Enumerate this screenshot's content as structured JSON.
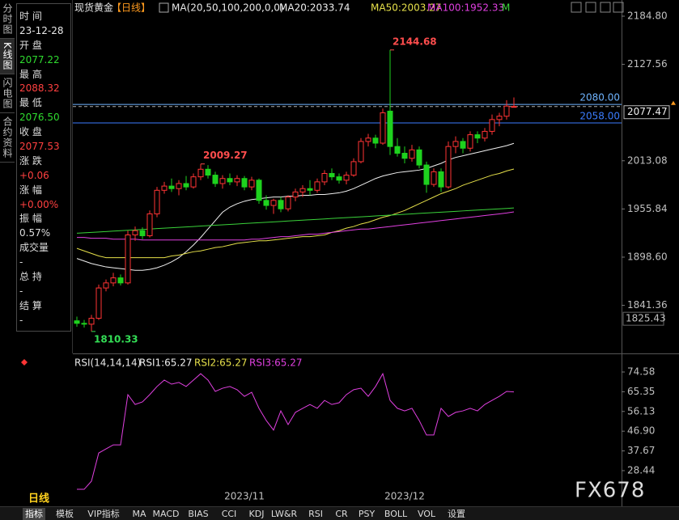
{
  "sidebar_tabs": [
    "分时图",
    "K线图",
    "闪电图",
    "合约资料"
  ],
  "info": [
    {
      "label": "时 间",
      "value": "23-12-28",
      "color": "#e8e8e8"
    },
    {
      "label": "开 盘",
      "value": "2077.22",
      "color": "#2fdc2f"
    },
    {
      "label": "最 高",
      "value": "2088.32",
      "color": "#ff4040"
    },
    {
      "label": "最 低",
      "value": "2076.50",
      "color": "#2fdc2f"
    },
    {
      "label": "收 盘",
      "value": "2077.53",
      "color": "#ff4040"
    },
    {
      "label": "涨 跌",
      "value": "+0.06",
      "color": "#ff4040"
    },
    {
      "label": "涨 幅",
      "value": "+0.00%",
      "color": "#ff4040"
    },
    {
      "label": "振 幅",
      "value": "0.57%",
      "color": "#dddddd"
    },
    {
      "label": "成交量",
      "value": "-",
      "color": "#dddddd"
    },
    {
      "label": "总 持",
      "value": "-",
      "color": "#dddddd"
    },
    {
      "label": "结 算",
      "value": "-",
      "color": "#dddddd"
    }
  ],
  "period_label": "日线",
  "watermark": "FX678",
  "tabs": [
    "指标",
    "模板",
    "VIP指标",
    "MA",
    "MACD",
    "BIAS",
    "CCI",
    "KDJ",
    "LW&R",
    "RSI",
    "CR",
    "PSY",
    "BOLL",
    "VOL",
    "设置"
  ],
  "chart_data": [
    {
      "type": "candlestick",
      "title": "现货黄金",
      "period": "【日线】",
      "indicator": "MA(20,50,100,200,0,0)",
      "ylim": [
        1786.2,
        2204.0
      ],
      "yticks": [
        {
          "value": 2184.8,
          "label": "2184.80"
        },
        2127.56,
        2013.08,
        1955.84,
        {
          "value": 1898.6,
          "label": "1898.60"
        },
        1841.36
      ],
      "up_color": "#ff3434",
      "down_color": "#1ed21e",
      "hlines": [
        {
          "value": 2080,
          "label": "2080.00",
          "color": "#6fb4ff"
        },
        {
          "value": 2058,
          "label": "2058.00",
          "color": "#3b7dff"
        }
      ],
      "last_price": 2077.47,
      "low_marker": 1825.43,
      "candles": [
        [
          1823,
          1828,
          1816,
          1820
        ],
        [
          1820,
          1824,
          1815,
          1819
        ],
        [
          1819,
          1830,
          1810.33,
          1826
        ],
        [
          1826,
          1866,
          1824,
          1862
        ],
        [
          1862,
          1872,
          1858,
          1868
        ],
        [
          1868,
          1880,
          1864,
          1874
        ],
        [
          1874,
          1878,
          1865,
          1868
        ],
        [
          1868,
          1930,
          1866,
          1925
        ],
        [
          1925,
          1935,
          1918,
          1930
        ],
        [
          1930,
          1934,
          1920,
          1924
        ],
        [
          1924,
          1954,
          1922,
          1950
        ],
        [
          1950,
          1982,
          1946,
          1978
        ],
        [
          1978,
          1988,
          1974,
          1983
        ],
        [
          1983,
          1992,
          1976,
          1980
        ],
        [
          1980,
          1990,
          1972,
          1986
        ],
        [
          1986,
          1995,
          1978,
          1982
        ],
        [
          1982,
          1998,
          1980,
          1994
        ],
        [
          1994,
          2009.27,
          1990,
          2003
        ],
        [
          2003,
          2008,
          1992,
          1996
        ],
        [
          1996,
          2000,
          1982,
          1986
        ],
        [
          1986,
          1996,
          1980,
          1992
        ],
        [
          1992,
          1998,
          1984,
          1988
        ],
        [
          1988,
          1996,
          1983,
          1992
        ],
        [
          1992,
          1995,
          1978,
          1982
        ],
        [
          1982,
          1994,
          1978,
          1990
        ],
        [
          1990,
          1992,
          1962,
          1966
        ],
        [
          1966,
          1972,
          1955,
          1960
        ],
        [
          1960,
          1968,
          1950,
          1966
        ],
        [
          1966,
          1970,
          1952,
          1956
        ],
        [
          1956,
          1972,
          1953,
          1970
        ],
        [
          1970,
          1980,
          1965,
          1976
        ],
        [
          1976,
          1984,
          1970,
          1980
        ],
        [
          1980,
          1990,
          1972,
          1978
        ],
        [
          1978,
          1992,
          1975,
          1988
        ],
        [
          1988,
          2002,
          1984,
          1998
        ],
        [
          1998,
          2004,
          1990,
          1994
        ],
        [
          1994,
          1998,
          1986,
          1990
        ],
        [
          1990,
          2000,
          1985,
          1996
        ],
        [
          1996,
          2016,
          1994,
          2012
        ],
        [
          2012,
          2040,
          2010,
          2036
        ],
        [
          2036,
          2045,
          2030,
          2040
        ],
        [
          2040,
          2044,
          2028,
          2034
        ],
        [
          2034,
          2075,
          2032,
          2070
        ],
        [
          2072,
          2144.68,
          2020,
          2030
        ],
        [
          2030,
          2040,
          2018,
          2022
        ],
        [
          2022,
          2030,
          2010,
          2016
        ],
        [
          2016,
          2032,
          2012,
          2026
        ],
        [
          2026,
          2030,
          2004,
          2008
        ],
        [
          2008,
          2012,
          1975,
          1985
        ],
        [
          1985,
          2004,
          1982,
          2000
        ],
        [
          2000,
          2004,
          1976,
          1982
        ],
        [
          1982,
          2036,
          1980,
          2030
        ],
        [
          2030,
          2042,
          2022,
          2036
        ],
        [
          2036,
          2040,
          2022,
          2028
        ],
        [
          2028,
          2048,
          2024,
          2044
        ],
        [
          2044,
          2048,
          2034,
          2040
        ],
        [
          2040,
          2052,
          2036,
          2048
        ],
        [
          2048,
          2068,
          2044,
          2062
        ],
        [
          2062,
          2070,
          2054,
          2066
        ],
        [
          2066,
          2085,
          2062,
          2078
        ],
        [
          2077.22,
          2088.32,
          2076.5,
          2077.53
        ]
      ],
      "series": [
        {
          "label": "MA20:2033.74",
          "color": "#f0f0f0",
          "values": [
            1897,
            1894,
            1891,
            1889,
            1887,
            1886,
            1885,
            1884,
            1883,
            1883,
            1884,
            1886,
            1889,
            1893,
            1898,
            1905,
            1913,
            1922,
            1932,
            1942,
            1952,
            1958,
            1962,
            1965,
            1967,
            1968,
            1969,
            1970,
            1970,
            1971,
            1971,
            1972,
            1972,
            1973,
            1973,
            1974,
            1975,
            1977,
            1980,
            1984,
            1988,
            1992,
            1995,
            1997,
            1999,
            2000,
            2001,
            2002,
            2004,
            2007,
            2010,
            2014,
            2017,
            2019,
            2021,
            2023,
            2025,
            2027,
            2029,
            2031,
            2033.74
          ]
        },
        {
          "label": "MA50:2003.27",
          "color": "#e6e04a",
          "values": [
            1909,
            1906,
            1903,
            1900,
            1898,
            1898,
            1898,
            1898,
            1898,
            1898,
            1898,
            1898,
            1898,
            1900,
            1901,
            1903,
            1905,
            1906,
            1908,
            1910,
            1911,
            1913,
            1915,
            1916,
            1917,
            1918,
            1918,
            1919,
            1920,
            1921,
            1922,
            1923,
            1923,
            1924,
            1925,
            1928,
            1930,
            1933,
            1935,
            1938,
            1940,
            1943,
            1946,
            1948,
            1951,
            1954,
            1958,
            1962,
            1966,
            1970,
            1974,
            1977,
            1980,
            1984,
            1987,
            1990,
            1993,
            1996,
            1998,
            2001,
            2003.27
          ]
        },
        {
          "label": "MA100:1952.33",
          "color": "#e040e0",
          "values": [
            1922,
            1922,
            1921,
            1921,
            1921,
            1920,
            1920,
            1920,
            1920,
            1919,
            1919,
            1919,
            1919,
            1919,
            1919,
            1919,
            1919,
            1919,
            1919,
            1919,
            1919,
            1919,
            1919,
            1919,
            1920,
            1920,
            1921,
            1922,
            1923,
            1923,
            1924,
            1925,
            1926,
            1926,
            1927,
            1928,
            1929,
            1930,
            1931,
            1932,
            1932,
            1933,
            1934,
            1935,
            1936,
            1937,
            1938,
            1939,
            1940,
            1941,
            1942,
            1943,
            1944,
            1945,
            1946,
            1947,
            1948,
            1949,
            1950,
            1951,
            1952.33
          ]
        },
        {
          "label": "M",
          "color": "#3ad23a",
          "values": [
            1927,
            1927.5,
            1928,
            1928.5,
            1929,
            1929.5,
            1930,
            1930.5,
            1931,
            1931.5,
            1932,
            1932.5,
            1933,
            1933.5,
            1934,
            1934.5,
            1935,
            1935.5,
            1936,
            1936.5,
            1937,
            1937.5,
            1938,
            1938.5,
            1939,
            1939.5,
            1940,
            1940.5,
            1941,
            1941.5,
            1942,
            1942.5,
            1943,
            1943.5,
            1944,
            1944.5,
            1945,
            1945.5,
            1946,
            1946.5,
            1947,
            1947.5,
            1948,
            1948.5,
            1949,
            1949.5,
            1950,
            1950.5,
            1951,
            1951.5,
            1952,
            1952.5,
            1953,
            1953.5,
            1954,
            1954.5,
            1955,
            1955.5,
            1956,
            1956.5,
            1957
          ]
        }
      ]
    },
    {
      "type": "line",
      "indicator": "RSI(14,14,14)",
      "labels": [
        {
          "text": "RSI1:65.27",
          "color": "#f0f0f0"
        },
        {
          "text": "RSI2:65.27",
          "color": "#e6e04a"
        },
        {
          "text": "RSI3:65.27",
          "color": "#e040e0"
        }
      ],
      "ylim": [
        15.94,
        82.15
      ],
      "yticks": [
        74.58,
        65.35,
        56.13,
        {
          "value": 46.9,
          "label": "46.90"
        },
        37.67,
        28.44
      ],
      "grid": false,
      "categories": [
        null,
        null,
        null,
        null,
        null,
        null,
        null,
        null,
        null,
        null,
        null,
        null,
        null,
        null,
        null,
        null,
        null,
        null,
        null,
        null,
        null,
        null,
        null,
        "2023/11",
        null,
        null,
        null,
        null,
        null,
        null,
        null,
        null,
        null,
        null,
        null,
        null,
        null,
        null,
        null,
        null,
        null,
        null,
        null,
        null,
        null,
        "2023/12",
        null,
        null,
        null,
        null,
        null,
        null,
        null,
        null,
        null,
        null,
        null,
        null,
        null,
        null,
        null
      ],
      "series": [
        {
          "color": "#e040e0",
          "values": [
            19.7,
            19.7,
            23.5,
            36.7,
            38.6,
            40.5,
            40.5,
            64.0,
            59.4,
            60.6,
            64.0,
            67.8,
            70.8,
            68.9,
            69.7,
            67.8,
            70.8,
            73.8,
            70.8,
            65.5,
            67.0,
            67.8,
            66.3,
            63.2,
            65.1,
            57.6,
            51.9,
            47.4,
            56.4,
            50.0,
            55.7,
            57.6,
            59.4,
            57.6,
            61.3,
            59.4,
            60.2,
            64.0,
            66.3,
            67.0,
            63.2,
            67.8,
            73.8,
            61.3,
            57.6,
            56.4,
            57.6,
            51.9,
            45.1,
            45.1,
            57.6,
            53.8,
            55.7,
            56.4,
            57.6,
            56.4,
            59.4,
            61.3,
            63.2,
            65.5,
            65.27
          ]
        }
      ]
    }
  ]
}
